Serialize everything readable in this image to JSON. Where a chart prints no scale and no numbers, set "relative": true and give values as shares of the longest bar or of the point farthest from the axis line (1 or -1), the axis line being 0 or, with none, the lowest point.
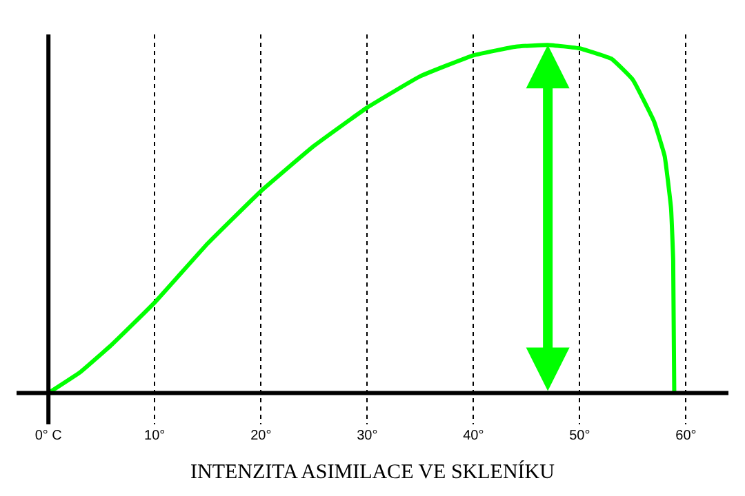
{
  "chart_data": {
    "type": "line",
    "relative": true,
    "xlabel": "INTENZITA ASIMILACE VE SKLENÍKU",
    "x": [
      0,
      3,
      6,
      10,
      15,
      20,
      25,
      30,
      35,
      40,
      44,
      47,
      50,
      53,
      55,
      57,
      58,
      58.6,
      58.8,
      58.9
    ],
    "series": [
      {
        "color": "#00ff00",
        "values": [
          0,
          0.06,
          0.14,
          0.26,
          0.43,
          0.58,
          0.71,
          0.82,
          0.91,
          0.97,
          0.995,
          1.0,
          0.99,
          0.96,
          0.9,
          0.78,
          0.68,
          0.53,
          0.38,
          0
        ]
      }
    ],
    "xlim": [
      -3,
      64
    ],
    "xticks": [
      {
        "value": 0,
        "label": "0° C"
      },
      {
        "value": 10,
        "label": "10°"
      },
      {
        "value": 20,
        "label": "20°"
      },
      {
        "value": 30,
        "label": "30°"
      },
      {
        "value": 40,
        "label": "40°"
      },
      {
        "value": 50,
        "label": "50°"
      },
      {
        "value": 60,
        "label": "60°"
      }
    ],
    "grid": "x",
    "marker": "none",
    "line_style": "solid",
    "ref_lines": [
      {
        "axis": "x",
        "value": 47,
        "color": "#00ff00"
      }
    ]
  }
}
